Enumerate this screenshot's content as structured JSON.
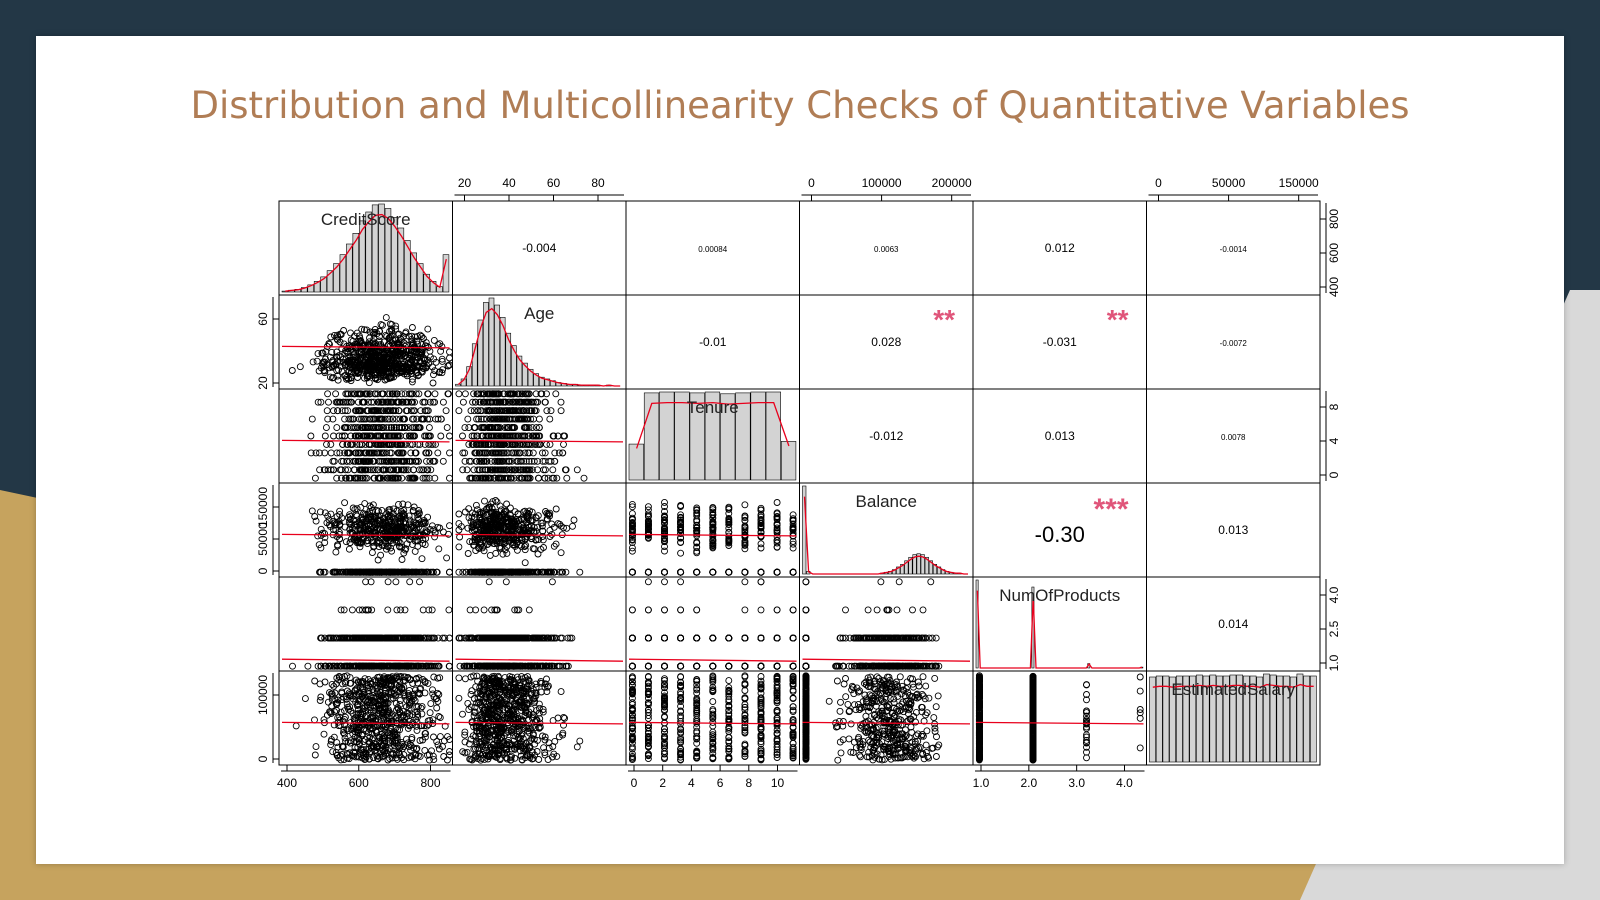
{
  "slide": {
    "title": "Distribution and Multicollinearity Checks of Quantitative Variables"
  },
  "colors": {
    "background_dark": "#233746",
    "accent_gold": "#c6a35e",
    "title_color": "#b07d55",
    "corr_star_color": "#e0557a",
    "smooth_line_color": "#e8001c"
  },
  "chart_data": {
    "type": "scatter",
    "subtype": "correlation-matrix",
    "variables": [
      "CreditScore",
      "Age",
      "Tenure",
      "Balance",
      "NumOfProducts",
      "EstimatedSalary"
    ],
    "diagonal": "histogram",
    "lower_triangle": "scatter",
    "upper_triangle": "correlation",
    "correlations": [
      {
        "row": 0,
        "col": 1,
        "text": "-0.004",
        "stars": ""
      },
      {
        "row": 0,
        "col": 2,
        "text": "0.00084",
        "stars": ""
      },
      {
        "row": 0,
        "col": 3,
        "text": "0.0063",
        "stars": ""
      },
      {
        "row": 0,
        "col": 4,
        "text": "0.012",
        "stars": ""
      },
      {
        "row": 0,
        "col": 5,
        "text": "-0.0014",
        "stars": ""
      },
      {
        "row": 1,
        "col": 2,
        "text": "-0.01",
        "stars": ""
      },
      {
        "row": 1,
        "col": 3,
        "text": "0.028",
        "stars": "**"
      },
      {
        "row": 1,
        "col": 4,
        "text": "-0.031",
        "stars": "**"
      },
      {
        "row": 1,
        "col": 5,
        "text": "-0.0072",
        "stars": ""
      },
      {
        "row": 2,
        "col": 3,
        "text": "-0.012",
        "stars": ""
      },
      {
        "row": 2,
        "col": 4,
        "text": "0.013",
        "stars": ""
      },
      {
        "row": 2,
        "col": 5,
        "text": "0.0078",
        "stars": ""
      },
      {
        "row": 3,
        "col": 4,
        "text": "-0.30",
        "stars": "***"
      },
      {
        "row": 3,
        "col": 5,
        "text": "0.013",
        "stars": ""
      },
      {
        "row": 4,
        "col": 5,
        "text": "0.014",
        "stars": ""
      }
    ],
    "histograms": [
      {
        "variable": "CreditScore",
        "values": [
          1,
          2,
          3,
          5,
          8,
          12,
          17,
          24,
          32,
          42,
          54,
          66,
          80,
          90,
          98,
          99,
          94,
          84,
          72,
          58,
          44,
          32,
          20,
          12,
          6,
          42
        ]
      },
      {
        "variable": "Age",
        "values": [
          2,
          8,
          22,
          48,
          75,
          95,
          100,
          92,
          78,
          60,
          46,
          34,
          26,
          19,
          14,
          10,
          8,
          6,
          4,
          3,
          2,
          2,
          1,
          1,
          1,
          1,
          0,
          1,
          0,
          0
        ]
      },
      {
        "variable": "Tenure",
        "values": [
          40,
          97,
          98,
          98,
          97,
          98,
          96,
          97,
          98,
          98,
          43
        ]
      },
      {
        "variable": "Balance",
        "values": [
          100,
          3,
          0,
          0,
          0,
          0,
          0,
          0,
          0,
          0,
          0,
          0,
          0,
          0,
          0,
          0,
          0,
          0,
          0,
          1,
          2,
          3,
          5,
          8,
          11,
          15,
          19,
          22,
          23,
          22,
          19,
          15,
          11,
          8,
          5,
          3,
          2,
          1,
          1,
          0,
          0
        ]
      },
      {
        "variable": "NumOfProducts",
        "values": [
          100,
          0,
          0,
          0,
          0,
          0,
          0,
          0,
          0,
          0,
          0,
          0,
          0,
          0,
          0,
          0,
          0,
          0,
          0,
          0,
          92,
          0,
          0,
          0,
          0,
          0,
          0,
          0,
          0,
          0,
          0,
          0,
          0,
          0,
          0,
          0,
          0,
          0,
          0,
          0,
          5,
          0,
          0,
          0,
          0,
          0,
          0,
          0,
          0,
          0,
          0,
          0,
          0,
          0,
          0,
          0,
          0,
          0,
          0,
          1
        ]
      },
      {
        "variable": "EstimatedSalary",
        "values": [
          85,
          86,
          86,
          85,
          86,
          86,
          86,
          87,
          86,
          87,
          86,
          86,
          87,
          87,
          86,
          86,
          85,
          88,
          87,
          86,
          86,
          85,
          88,
          86,
          86
        ]
      }
    ],
    "axes": {
      "top": [
        {
          "col": 1,
          "ticks": [
            "20",
            "40",
            "60",
            "80"
          ]
        },
        {
          "col": 3,
          "ticks": [
            "0",
            "100000",
            "200000"
          ]
        },
        {
          "col": 5,
          "ticks": [
            "0",
            "50000",
            "150000"
          ]
        }
      ],
      "bottom": [
        {
          "col": 0,
          "ticks": [
            "400",
            "600",
            "800"
          ]
        },
        {
          "col": 2,
          "ticks": [
            "0",
            "2",
            "4",
            "6",
            "8",
            "10"
          ]
        },
        {
          "col": 4,
          "ticks": [
            "1.0",
            "2.0",
            "3.0",
            "4.0"
          ]
        }
      ],
      "left": [
        {
          "row": 1,
          "ticks": [
            "20",
            "60"
          ]
        },
        {
          "row": 3,
          "ticks": [
            "0",
            "50000",
            "150000"
          ]
        },
        {
          "row": 5,
          "ticks": [
            "0",
            "100000"
          ]
        }
      ],
      "right": [
        {
          "row": 0,
          "ticks": [
            "400",
            "600",
            "800"
          ]
        },
        {
          "row": 2,
          "ticks": [
            "0",
            "4",
            "8"
          ]
        },
        {
          "row": 4,
          "ticks": [
            "1.0",
            "2.5",
            "4.0"
          ]
        }
      ]
    }
  }
}
